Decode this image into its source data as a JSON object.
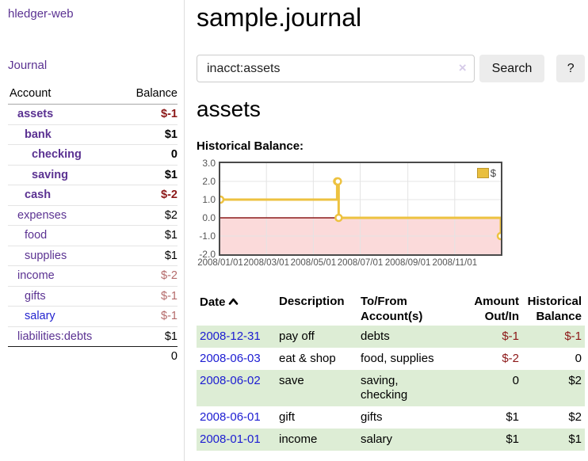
{
  "app": {
    "brand": "hledger-web"
  },
  "sidebar": {
    "nav": {
      "journal": "Journal"
    },
    "accounts_header": {
      "account": "Account",
      "balance": "Balance"
    },
    "accounts": [
      {
        "name": "assets",
        "balance": "$-1",
        "level": 1,
        "bold": true,
        "balance_style": "neg-strong"
      },
      {
        "name": "bank",
        "balance": "$1",
        "level": 2,
        "bold": true,
        "balance_style": "normal"
      },
      {
        "name": "checking",
        "balance": "0",
        "level": 3,
        "bold": true,
        "balance_style": "normal"
      },
      {
        "name": "saving",
        "balance": "$1",
        "level": 3,
        "bold": true,
        "balance_style": "normal"
      },
      {
        "name": "cash",
        "balance": "$-2",
        "level": 2,
        "bold": true,
        "balance_style": "neg-strong"
      },
      {
        "name": "expenses",
        "balance": "$2",
        "level": 1,
        "bold": false,
        "balance_style": "normal"
      },
      {
        "name": "food",
        "balance": "$1",
        "level": 2,
        "bold": false,
        "balance_style": "normal"
      },
      {
        "name": "supplies",
        "balance": "$1",
        "level": 2,
        "bold": false,
        "balance_style": "normal"
      },
      {
        "name": "income",
        "balance": "$-2",
        "level": 1,
        "bold": false,
        "balance_style": "neg-muted"
      },
      {
        "name": "gifts",
        "balance": "$-1",
        "level": 2,
        "bold": false,
        "balance_style": "neg-muted"
      },
      {
        "name": "salary",
        "balance": "$-1",
        "level": 2,
        "bold": false,
        "balance_style": "neg-muted",
        "link_style": "unvisited-blue"
      },
      {
        "name": "liabilities:debts",
        "balance": "$1",
        "level": 1,
        "bold": false,
        "balance_style": "normal"
      }
    ],
    "total": "0"
  },
  "header": {
    "title": "sample.journal"
  },
  "search": {
    "value": "inacct:assets",
    "clear_icon": "×",
    "button_label": "Search",
    "help_label": "?"
  },
  "register": {
    "heading": "assets",
    "chart_label": "Historical Balance:",
    "columns": [
      {
        "label": "Date",
        "sort": "ascending"
      },
      {
        "label": "Description"
      },
      {
        "line1": "To/From",
        "line2": "Account(s)"
      },
      {
        "line1": "Amount",
        "line2": "Out/In",
        "align": "right"
      },
      {
        "line1": "Historical",
        "line2": "Balance",
        "align": "right"
      }
    ],
    "rows": [
      {
        "date": "2008-12-31",
        "description": "pay off",
        "accounts": "debts",
        "amount": "$-1",
        "amount_negative": true,
        "balance": "$-1",
        "balance_negative": true
      },
      {
        "date": "2008-06-03",
        "description": "eat & shop",
        "accounts": "food, supplies",
        "amount": "$-2",
        "amount_negative": true,
        "balance": "0",
        "balance_negative": false
      },
      {
        "date": "2008-06-02",
        "description": "save",
        "accounts": "saving,\nchecking",
        "amount": "0",
        "amount_negative": false,
        "balance": "$2",
        "balance_negative": false
      },
      {
        "date": "2008-06-01",
        "description": "gift",
        "accounts": "gifts",
        "amount": "$1",
        "amount_negative": false,
        "balance": "$2",
        "balance_negative": false
      },
      {
        "date": "2008-01-01",
        "description": "income",
        "accounts": "salary",
        "amount": "$1",
        "amount_negative": false,
        "balance": "$1",
        "balance_negative": false
      }
    ]
  },
  "chart_data": {
    "type": "line",
    "title": "Historical Balance",
    "step": true,
    "x_range": [
      "2008-01-01",
      "2008-12-31"
    ],
    "ylim": [
      -2,
      3
    ],
    "grid": true,
    "legend_position": "top-right",
    "series": [
      {
        "name": "$",
        "color": "#edc240",
        "points": [
          [
            "2008-01-01",
            1
          ],
          [
            "2008-06-01",
            2
          ],
          [
            "2008-06-02",
            2
          ],
          [
            "2008-06-03",
            0
          ],
          [
            "2008-12-31",
            -1
          ]
        ]
      }
    ],
    "x_ticks": [
      {
        "label": "2008/01/01",
        "date": "2008-01-01"
      },
      {
        "label": "2008/03/01",
        "date": "2008-03-01"
      },
      {
        "label": "2008/05/01",
        "date": "2008-05-01"
      },
      {
        "label": "2008/07/01",
        "date": "2008-07-01"
      },
      {
        "label": "2008/09/01",
        "date": "2008-09-01"
      },
      {
        "label": "2008/11/01",
        "date": "2008-11-01"
      }
    ],
    "y_ticks": [
      {
        "label": "3.0",
        "value": 3
      },
      {
        "label": "2.0",
        "value": 2
      },
      {
        "label": "1.0",
        "value": 1
      },
      {
        "label": "0.0",
        "value": 0
      },
      {
        "label": "-1.0",
        "value": -1
      },
      {
        "label": "-2.0",
        "value": -2
      }
    ],
    "colors": {
      "negative_fill": "#fbdada",
      "zero_line": "#8b1a1a",
      "gridline": "#e4e4e4"
    }
  },
  "colors": {
    "link_purple": "#5b3292",
    "link_blue": "#2323cf",
    "negative_strong": "#8c1717",
    "negative_muted": "#b46a6a",
    "row_stripe_green": "#ddedd5",
    "chart_line": "#edc240",
    "button_bg": "#ececec"
  }
}
